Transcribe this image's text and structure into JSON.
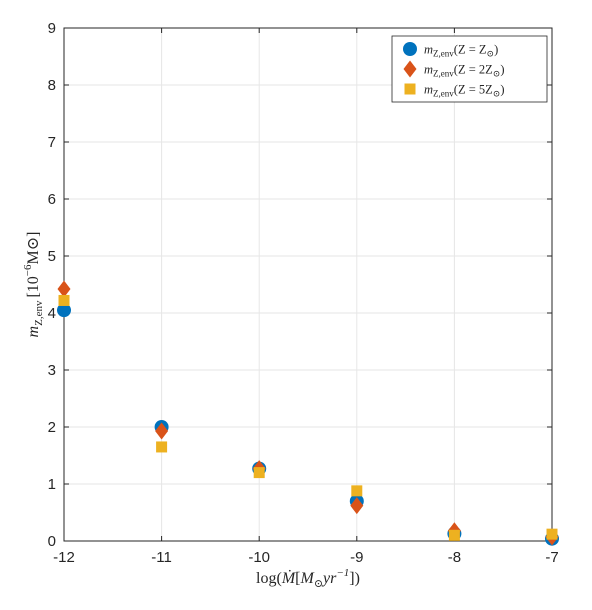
{
  "chart_data": {
    "type": "scatter",
    "xlabel": "log(Ṁ[M⊙yr⁻¹])",
    "ylabel": "m_Z,env [10⁻⁶M⊙]",
    "ylabel_main": "m",
    "ylabel_sub": "Z,env",
    "ylabel_unit": "[10",
    "ylabel_exp": "−6",
    "ylabel_tail": "M⊙]",
    "xlabel_parts": {
      "pre": "log(",
      "mdot": "Ṁ",
      "bracket": "[",
      "msun": "M",
      "sun_sub": "⊙",
      "yr": "yr",
      "exp": "−1",
      "post": "])"
    },
    "xlim": [
      -12,
      -7
    ],
    "ylim": [
      0,
      9
    ],
    "xticks": [
      -12,
      -11,
      -10,
      -9,
      -8,
      -7
    ],
    "xtick_labels": [
      "-12",
      "-11",
      "-10",
      "-9",
      "-8",
      "-7"
    ],
    "yticks": [
      0,
      1,
      2,
      3,
      4,
      5,
      6,
      7,
      8,
      9
    ],
    "ytick_labels": [
      "0",
      "1",
      "2",
      "3",
      "4",
      "5",
      "6",
      "7",
      "8",
      "9"
    ],
    "grid": true,
    "legend_position": "top-right",
    "series": [
      {
        "name": "m_Z,env(Z = Z⊙)",
        "label_main": "m",
        "label_sub": "Z,env",
        "label_rest": "(Z = Z",
        "label_sun": "⊙",
        "label_end": ")",
        "marker": "circle",
        "color": "#0072BD",
        "x": [
          -12,
          -11,
          -10,
          -9,
          -8,
          -7
        ],
        "y": [
          4.05,
          2.0,
          1.27,
          0.7,
          0.13,
          0.04
        ]
      },
      {
        "name": "m_Z,env(Z = 2Z⊙)",
        "label_main": "m",
        "label_sub": "Z,env",
        "label_rest": "(Z = 2Z",
        "label_sun": "⊙",
        "label_end": ")",
        "marker": "diamond",
        "color": "#D95319",
        "x": [
          -12,
          -11,
          -10,
          -9,
          -8,
          -7
        ],
        "y": [
          4.42,
          1.93,
          1.27,
          0.62,
          0.18,
          0.07
        ]
      },
      {
        "name": "m_Z,env(Z = 5Z⊙)",
        "label_main": "m",
        "label_sub": "Z,env",
        "label_rest": "(Z = 5Z",
        "label_sun": "⊙",
        "label_end": ")",
        "marker": "square",
        "color": "#EDB120",
        "x": [
          -12,
          -11,
          -10,
          -9,
          -8,
          -7
        ],
        "y": [
          4.22,
          1.65,
          1.2,
          0.88,
          0.1,
          0.12
        ]
      }
    ]
  }
}
